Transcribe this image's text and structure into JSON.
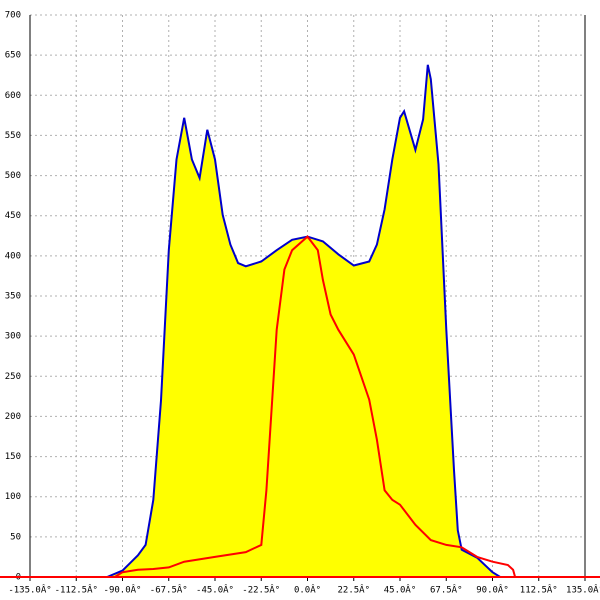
{
  "chart_data": {
    "type": "area",
    "xlim": [
      -135,
      135
    ],
    "ylim": [
      0,
      700
    ],
    "xticks": [
      {
        "value": -135,
        "label": "-135.0Â°"
      },
      {
        "value": -112.5,
        "label": "-112.5Â°"
      },
      {
        "value": -90,
        "label": "-90.0Â°"
      },
      {
        "value": -67.5,
        "label": "-67.5Â°"
      },
      {
        "value": -45,
        "label": "-45.0Â°"
      },
      {
        "value": -22.5,
        "label": "-22.5Â°"
      },
      {
        "value": 0,
        "label": "0.0Â°"
      },
      {
        "value": 22.5,
        "label": "22.5Â°"
      },
      {
        "value": 45,
        "label": "45.0Â°"
      },
      {
        "value": 67.5,
        "label": "67.5Â°"
      },
      {
        "value": 90,
        "label": "90.0Â°"
      },
      {
        "value": 112.5,
        "label": "112.5Â°"
      },
      {
        "value": 135,
        "label": "135.0Â°"
      }
    ],
    "yticks": [
      0,
      50,
      100,
      150,
      200,
      250,
      300,
      350,
      400,
      450,
      500,
      550,
      600,
      650,
      700
    ],
    "grid": true,
    "series": [
      {
        "color": "#0000cc",
        "fill": "#ffff00",
        "x": [
          -97.5,
          -90,
          -82.5,
          -78.75,
          -75,
          -71.25,
          -67.5,
          -63.75,
          -60,
          -56.25,
          -52.5,
          -48.75,
          -45,
          -41.25,
          -37.5,
          -33.75,
          -30,
          -22.5,
          -15,
          -7.5,
          0,
          7.5,
          15,
          22.5,
          30,
          33.75,
          37.5,
          41.25,
          45,
          47,
          52.5,
          56.25,
          58.5,
          60,
          63.75,
          67.5,
          71.25,
          73.1,
          75,
          82.5,
          90,
          93.75,
          100.9
        ],
        "values": [
          0,
          8,
          27,
          40,
          96,
          220,
          407,
          520,
          572,
          520,
          497,
          557,
          520,
          451,
          414,
          391,
          387,
          393,
          407,
          420,
          424,
          418,
          402,
          388,
          393,
          414,
          458,
          520,
          572,
          580,
          532,
          570,
          638,
          620,
          514,
          308,
          133,
          58,
          34,
          24,
          6,
          0,
          0
        ]
      },
      {
        "color": "#ff0000",
        "x": [
          -93.75,
          -90,
          -82.5,
          -75,
          -67.5,
          -60,
          -45,
          -30,
          -22.5,
          -20,
          -15,
          -11.25,
          -7.5,
          0,
          5,
          7.5,
          11.25,
          15,
          22.5,
          30,
          33.75,
          37.5,
          41.25,
          45,
          52.5,
          60,
          67.5,
          75,
          82.5,
          90,
          97.5,
          100,
          101
        ],
        "values": [
          0,
          6,
          9,
          10,
          12,
          19,
          25,
          31,
          40,
          108,
          308,
          383,
          407,
          424,
          407,
          370,
          327,
          308,
          277,
          221,
          171,
          108,
          96,
          90,
          65,
          46,
          40,
          37,
          25,
          19,
          15,
          9,
          0
        ]
      }
    ]
  }
}
